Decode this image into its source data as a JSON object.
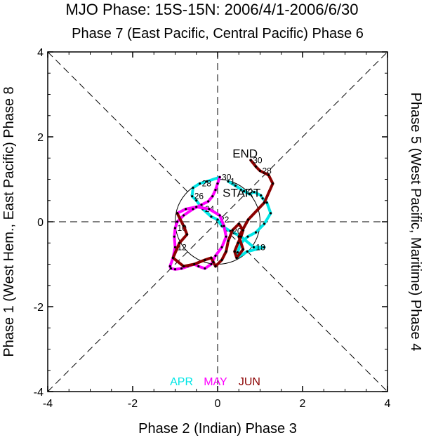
{
  "chart_data": {
    "type": "line",
    "title": "MJO Phase: 15S-15N: 2006/4/1-2006/6/30",
    "top_label": "Phase 7 (East Pacific, Central Pacific) Phase 6",
    "xlabel": "Phase 2 (Indian) Phase 3",
    "left_label": "Phase 1 (West Hem., East Pacific) Phase 8",
    "right_label": "Phase 5 (West Pacific, Maritime) Phase 4",
    "xlim": [
      -4,
      4
    ],
    "ylim": [
      -4,
      4
    ],
    "xticks": [
      -4,
      -2,
      0,
      2,
      4
    ],
    "yticks": [
      -4,
      -2,
      0,
      2,
      4
    ],
    "unit_circle_radius": 1,
    "start_label": "START",
    "end_label": "END",
    "series": [
      {
        "name": "APR",
        "color": "#00e6e6",
        "x": [
          0.25,
          0.42,
          0.62,
          0.75,
          0.86,
          1.02,
          1.06,
          1.16,
          1.25,
          1.1,
          0.9,
          0.71,
          0.55,
          0.47,
          0.45,
          0.7,
          1.1,
          0.85,
          0.55,
          0.3,
          0.1,
          0.0,
          -0.15,
          -0.35,
          -0.5,
          -0.6,
          -0.58,
          -0.42,
          -0.25,
          0.05
        ],
        "y": [
          0.95,
          0.85,
          0.72,
          0.65,
          0.7,
          0.62,
          0.55,
          0.45,
          0.2,
          -0.05,
          -0.25,
          -0.35,
          -0.5,
          -0.72,
          -0.85,
          -0.7,
          -0.6,
          -0.6,
          -0.35,
          -0.22,
          -0.1,
          0.05,
          0.12,
          0.3,
          0.5,
          0.6,
          0.8,
          0.9,
          0.95,
          1.05
        ],
        "day_labels": [
          "1",
          "",
          "",
          "",
          "",
          "",
          "",
          "",
          "",
          "",
          "",
          "",
          "",
          "",
          "",
          "",
          "",
          "18",
          "",
          "20",
          "",
          "22",
          "",
          "24",
          "",
          "26",
          "",
          "28",
          "",
          "30"
        ]
      },
      {
        "name": "MAY",
        "color": "#ff00ff",
        "x": [
          0.05,
          0.0,
          -0.05,
          -0.12,
          -0.22,
          -0.38,
          -0.58,
          -0.8,
          -0.95,
          -1.0,
          -1.02,
          -1.0,
          -1.05,
          -1.12,
          -1.1,
          -1.0,
          -0.85,
          -0.7,
          -0.55,
          -0.45,
          -0.3,
          -0.15,
          -0.05,
          0.1,
          0.2,
          0.15,
          0.05,
          -0.2,
          -0.5,
          -0.75,
          -0.95
        ],
        "y": [
          1.05,
          0.9,
          0.75,
          0.6,
          0.48,
          0.4,
          0.3,
          0.15,
          0.0,
          -0.15,
          -0.35,
          -0.6,
          -0.85,
          -1.05,
          -1.1,
          -1.12,
          -1.1,
          -1.05,
          -1.0,
          -1.05,
          -1.1,
          -1.0,
          -0.8,
          -0.6,
          -0.35,
          -0.1,
          0.15,
          0.3,
          0.35,
          0.3,
          0.2
        ],
        "day_labels": [
          "",
          "",
          "",
          "",
          "",
          "",
          "",
          "",
          "",
          "10",
          "",
          "12",
          "",
          "",
          "",
          "",
          "",
          "",
          "",
          "",
          "",
          "",
          "",
          "",
          "",
          "",
          "",
          "",
          "",
          "",
          ""
        ]
      },
      {
        "name": "JUN",
        "color": "#8b0000",
        "x": [
          -0.95,
          -0.8,
          -0.72,
          -0.9,
          -1.05,
          -0.8,
          -0.55,
          -0.3,
          -0.15,
          -0.1,
          -0.05,
          0.1,
          0.2,
          0.25,
          0.35,
          0.5,
          0.6,
          0.55,
          0.48,
          0.4,
          0.45,
          0.6,
          0.5,
          0.72,
          1.1,
          1.3,
          1.2,
          1.0,
          0.9,
          0.78
        ],
        "y": [
          0.2,
          -0.1,
          -0.3,
          -0.5,
          -0.85,
          -1.05,
          -1.0,
          -0.9,
          -0.85,
          -0.95,
          -1.05,
          -0.9,
          -0.7,
          -0.45,
          -0.2,
          -0.05,
          -0.2,
          -0.35,
          -0.5,
          -0.7,
          -0.85,
          -0.65,
          -0.35,
          0.05,
          0.45,
          0.9,
          1.1,
          1.2,
          1.3,
          1.45
        ],
        "day_labels": [
          "",
          "",
          "",
          "",
          "",
          "",
          "",
          "",
          "",
          "",
          "",
          "",
          "",
          "",
          "",
          "",
          "",
          "",
          "",
          "",
          "",
          "",
          "",
          "",
          "",
          "",
          "",
          "28",
          "",
          "30"
        ]
      }
    ],
    "legend": [
      {
        "label": "APR",
        "color": "#00e6e6"
      },
      {
        "label": "MAY",
        "color": "#ff00ff"
      },
      {
        "label": "JUN",
        "color": "#8b0000"
      }
    ],
    "grid": false,
    "legend_position": "bottom-inside"
  }
}
